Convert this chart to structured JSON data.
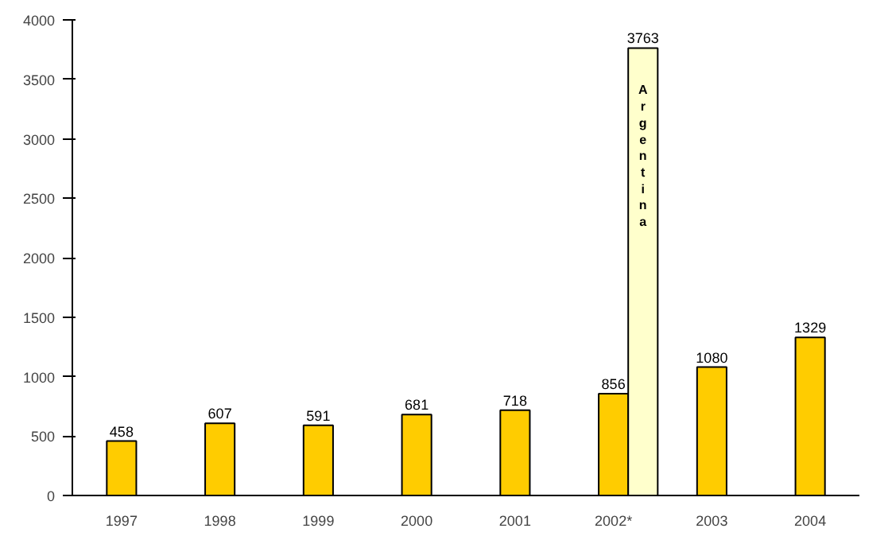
{
  "chart_data": {
    "type": "bar",
    "categories": [
      "1997",
      "1998",
      "1999",
      "2000",
      "2001",
      "2002*",
      "2003",
      "2004"
    ],
    "series": [
      {
        "color": "#ffcc00",
        "values": [
          458,
          607,
          591,
          681,
          718,
          856,
          1080,
          1329
        ]
      },
      {
        "name": "Argentina",
        "color": "#ffffcc",
        "values": [
          null,
          null,
          null,
          null,
          null,
          3763,
          null,
          null
        ]
      }
    ],
    "ylim": [
      0,
      4000
    ],
    "yticks": [
      0,
      500,
      1000,
      1500,
      2000,
      2500,
      3000,
      3500,
      4000
    ],
    "data_labels": true,
    "grid": false
  }
}
